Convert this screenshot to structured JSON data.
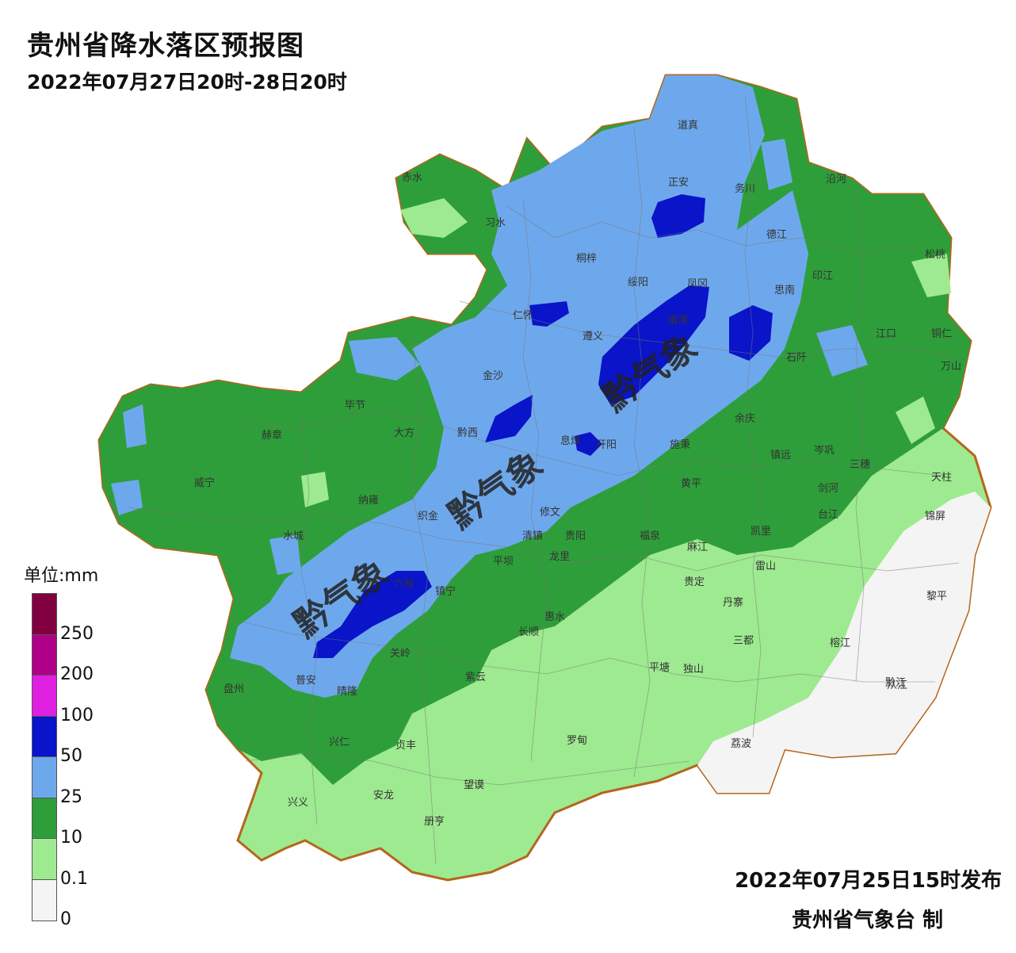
{
  "title": "贵州省降水落区预报图",
  "subtitle": "2022年07月27日20时-28日20时",
  "legend": {
    "unit": "单位:mm",
    "levels": [
      {
        "label": "",
        "color": "#800040"
      },
      {
        "label": "250",
        "color": "#b0008a"
      },
      {
        "label": "200",
        "color": "#e020e0"
      },
      {
        "label": "100",
        "color": "#0a14c8"
      },
      {
        "label": "50",
        "color": "#6ea8ec"
      },
      {
        "label": "25",
        "color": "#2e9e3a"
      },
      {
        "label": "10",
        "color": "#9eea90"
      },
      {
        "label": "0.1",
        "color": "#f4f4f4"
      },
      {
        "label": "0",
        "color": ""
      }
    ]
  },
  "watermark": "黔气象",
  "cities": [
    "道真",
    "正安",
    "务川",
    "沿河",
    "桐梓",
    "习水",
    "赤水",
    "德江",
    "印江",
    "松桃",
    "绥阳",
    "凤冈",
    "思南",
    "仁怀",
    "湄潭",
    "遵义",
    "江口",
    "铜仁",
    "石阡",
    "万山",
    "金沙",
    "余庆",
    "毕节",
    "大方",
    "黔西",
    "息烽",
    "开阳",
    "施秉",
    "镇远",
    "岑巩",
    "三穗",
    "天柱",
    "赫章",
    "威宁",
    "纳雍",
    "织金",
    "修文",
    "黄平",
    "剑河",
    "锦屏",
    "水城",
    "清镇",
    "贵阳",
    "龙里",
    "福泉",
    "麻江",
    "台江",
    "凯里",
    "雷山",
    "六枝",
    "平坝",
    "惠水",
    "贵定",
    "丹寨",
    "榕江",
    "黎平",
    "盘州",
    "普安",
    "晴隆",
    "关岭",
    "镇宁",
    "长顺",
    "三都",
    "从江",
    "兴仁",
    "贞丰",
    "紫云",
    "罗甸",
    "平塘",
    "独山",
    "荔波",
    "兴义",
    "安龙",
    "望谟",
    "册亨",
    "黔江"
  ],
  "footer": {
    "issue": "2022年07月25日15时发布",
    "maker": "贵州省气象台 制"
  }
}
